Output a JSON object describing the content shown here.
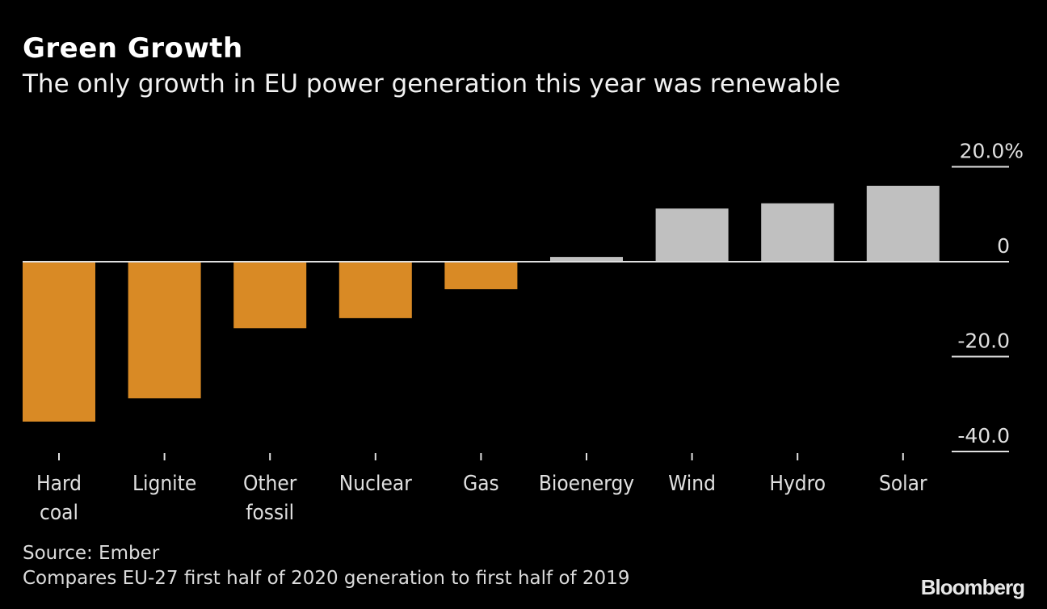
{
  "header": {
    "title": "Green Growth",
    "subtitle": "The only growth in EU power generation this year was renewable"
  },
  "footer": {
    "source": "Source: Ember",
    "note": "Compares EU-27 first half of 2020 generation to first half of 2019",
    "brand": "Bloomberg"
  },
  "colors": {
    "negative": "#d98a25",
    "positive": "#c0c0c0",
    "axis": "#e0e0e0",
    "background": "#000000"
  },
  "chart_data": {
    "type": "bar",
    "title": "Green Growth",
    "subtitle": "The only growth in EU power generation this year was renewable",
    "xlabel": "",
    "ylabel": "",
    "categories": [
      "Hard coal",
      "Lignite",
      "Other fossil",
      "Nuclear",
      "Gas",
      "Bioenergy",
      "Wind",
      "Hydro",
      "Solar"
    ],
    "category_lines": [
      [
        "Hard",
        "coal"
      ],
      [
        "Lignite"
      ],
      [
        "Other",
        "fossil"
      ],
      [
        "Nuclear"
      ],
      [
        "Gas"
      ],
      [
        "Bioenergy"
      ],
      [
        "Wind"
      ],
      [
        "Hydro"
      ],
      [
        "Solar"
      ]
    ],
    "values": [
      -33.7,
      -28.8,
      -14.0,
      -11.9,
      -5.8,
      1.0,
      11.2,
      12.3,
      16.0
    ],
    "ylim": [
      -40,
      20
    ],
    "yticks": [
      {
        "value": 20,
        "label": "20.0%"
      },
      {
        "value": 0,
        "label": "0"
      },
      {
        "value": -20,
        "label": "-20.0"
      },
      {
        "value": -40,
        "label": "-40.0"
      }
    ],
    "y_axis_position": "right",
    "grid": false,
    "legend": "none",
    "units": "%"
  }
}
